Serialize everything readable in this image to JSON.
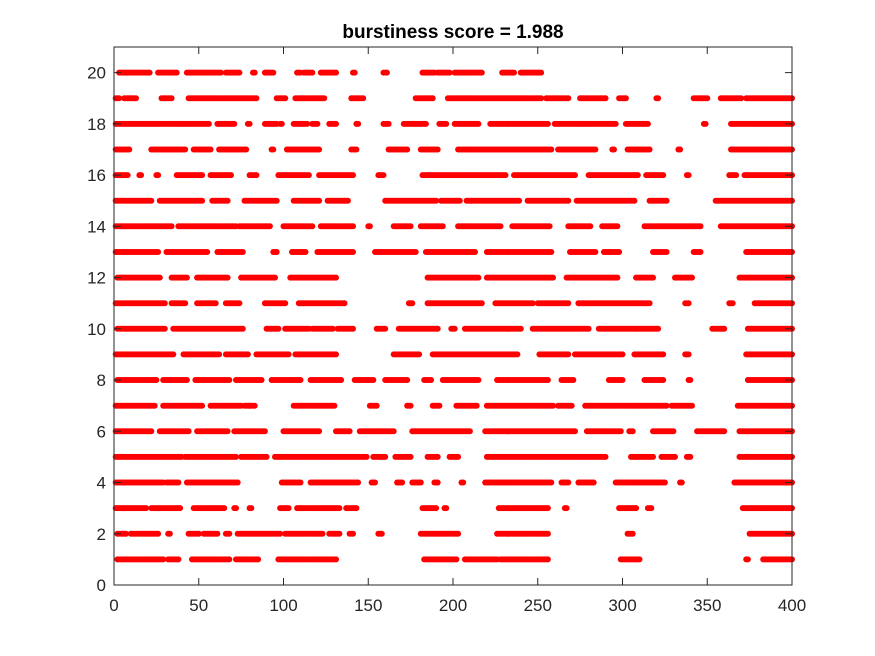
{
  "chart_data": {
    "type": "scatter",
    "title": "burstiness score = 1.988",
    "xlabel": "",
    "ylabel": "",
    "xlim": [
      0,
      400
    ],
    "ylim": [
      0,
      21
    ],
    "xticks": [
      0,
      50,
      100,
      150,
      200,
      250,
      300,
      350,
      400
    ],
    "yticks": [
      0,
      2,
      4,
      6,
      8,
      10,
      12,
      14,
      16,
      18,
      20
    ],
    "grid": false,
    "marker_color": "#ff0000",
    "axis_color": "#262626",
    "rows": [
      {
        "y": 1,
        "segments": [
          [
            2,
            29
          ],
          [
            32,
            38
          ],
          [
            46,
            68
          ],
          [
            72,
            85
          ],
          [
            97,
            131
          ],
          [
            183,
            202
          ],
          [
            207,
            226
          ],
          [
            228,
            256
          ],
          [
            299,
            310
          ],
          [
            373,
            374
          ],
          [
            383,
            400
          ]
        ]
      },
      {
        "y": 2,
        "segments": [
          [
            2,
            7
          ],
          [
            10,
            26
          ],
          [
            32,
            33
          ],
          [
            44,
            50
          ],
          [
            53,
            61
          ],
          [
            66,
            68
          ],
          [
            73,
            98
          ],
          [
            101,
            123
          ],
          [
            127,
            133
          ],
          [
            139,
            141
          ],
          [
            156,
            158
          ],
          [
            181,
            203
          ],
          [
            226,
            256
          ],
          [
            303,
            306
          ],
          [
            375,
            400
          ]
        ]
      },
      {
        "y": 3,
        "segments": [
          [
            1,
            19
          ],
          [
            22,
            39
          ],
          [
            47,
            65
          ],
          [
            71,
            72
          ],
          [
            80,
            81
          ],
          [
            98,
            103
          ],
          [
            108,
            133
          ],
          [
            137,
            143
          ],
          [
            182,
            190
          ],
          [
            195,
            196
          ],
          [
            227,
            256
          ],
          [
            266,
            267
          ],
          [
            298,
            308
          ],
          [
            315,
            317
          ],
          [
            371,
            400
          ]
        ]
      },
      {
        "y": 4,
        "segments": [
          [
            1,
            29
          ],
          [
            31,
            38
          ],
          [
            43,
            73
          ],
          [
            99,
            110
          ],
          [
            116,
            144
          ],
          [
            152,
            154
          ],
          [
            167,
            170
          ],
          [
            176,
            181
          ],
          [
            189,
            191
          ],
          [
            205,
            206
          ],
          [
            219,
            258
          ],
          [
            264,
            268
          ],
          [
            274,
            283
          ],
          [
            296,
            325
          ],
          [
            334,
            335
          ],
          [
            366,
            400
          ]
        ]
      },
      {
        "y": 5,
        "segments": [
          [
            1,
            40
          ],
          [
            42,
            72
          ],
          [
            75,
            90
          ],
          [
            95,
            149
          ],
          [
            153,
            160
          ],
          [
            166,
            175
          ],
          [
            185,
            191
          ],
          [
            198,
            203
          ],
          [
            220,
            290
          ],
          [
            305,
            318
          ],
          [
            323,
            331
          ],
          [
            338,
            340
          ],
          [
            369,
            400
          ]
        ]
      },
      {
        "y": 6,
        "segments": [
          [
            1,
            22
          ],
          [
            27,
            44
          ],
          [
            49,
            67
          ],
          [
            71,
            89
          ],
          [
            100,
            121
          ],
          [
            131,
            139
          ],
          [
            145,
            165
          ],
          [
            176,
            210
          ],
          [
            219,
            272
          ],
          [
            279,
            299
          ],
          [
            304,
            306
          ],
          [
            318,
            330
          ],
          [
            344,
            360
          ],
          [
            369,
            400
          ]
        ]
      },
      {
        "y": 7,
        "segments": [
          [
            1,
            24
          ],
          [
            29,
            52
          ],
          [
            57,
            75
          ],
          [
            77,
            80
          ],
          [
            80,
            83
          ],
          [
            106,
            130
          ],
          [
            151,
            155
          ],
          [
            173,
            175
          ],
          [
            188,
            192
          ],
          [
            202,
            214
          ],
          [
            220,
            259
          ],
          [
            262,
            270
          ],
          [
            278,
            326
          ],
          [
            329,
            341
          ],
          [
            368,
            400
          ]
        ]
      },
      {
        "y": 8,
        "segments": [
          [
            2,
            25
          ],
          [
            29,
            43
          ],
          [
            48,
            68
          ],
          [
            72,
            87
          ],
          [
            93,
            110
          ],
          [
            116,
            134
          ],
          [
            142,
            153
          ],
          [
            160,
            173
          ],
          [
            183,
            187
          ],
          [
            194,
            215
          ],
          [
            226,
            256
          ],
          [
            264,
            271
          ],
          [
            292,
            300
          ],
          [
            313,
            324
          ],
          [
            339,
            340
          ],
          [
            374,
            400
          ]
        ]
      },
      {
        "y": 9,
        "segments": [
          [
            1,
            35
          ],
          [
            41,
            62
          ],
          [
            66,
            79
          ],
          [
            84,
            103
          ],
          [
            107,
            131
          ],
          [
            165,
            180
          ],
          [
            188,
            238
          ],
          [
            251,
            268
          ],
          [
            272,
            300
          ],
          [
            307,
            324
          ],
          [
            337,
            339
          ],
          [
            373,
            400
          ]
        ]
      },
      {
        "y": 10,
        "segments": [
          [
            2,
            30
          ],
          [
            35,
            76
          ],
          [
            90,
            97
          ],
          [
            101,
            115
          ],
          [
            117,
            129
          ],
          [
            132,
            141
          ],
          [
            155,
            160
          ],
          [
            168,
            191
          ],
          [
            199,
            201
          ],
          [
            207,
            240
          ],
          [
            247,
            280
          ],
          [
            286,
            321
          ],
          [
            353,
            360
          ],
          [
            374,
            400
          ]
        ]
      },
      {
        "y": 11,
        "segments": [
          [
            1,
            30
          ],
          [
            34,
            42
          ],
          [
            49,
            60
          ],
          [
            66,
            74
          ],
          [
            89,
            101
          ],
          [
            109,
            136
          ],
          [
            174,
            176
          ],
          [
            185,
            217
          ],
          [
            225,
            247
          ],
          [
            250,
            268
          ],
          [
            274,
            316
          ],
          [
            337,
            339
          ],
          [
            363,
            365
          ],
          [
            378,
            400
          ]
        ]
      },
      {
        "y": 12,
        "segments": [
          [
            2,
            27
          ],
          [
            34,
            43
          ],
          [
            49,
            67
          ],
          [
            75,
            95
          ],
          [
            104,
            131
          ],
          [
            185,
            215
          ],
          [
            220,
            259
          ],
          [
            267,
            297
          ],
          [
            308,
            318
          ],
          [
            331,
            341
          ],
          [
            369,
            400
          ]
        ]
      },
      {
        "y": 13,
        "segments": [
          [
            1,
            26
          ],
          [
            31,
            55
          ],
          [
            61,
            76
          ],
          [
            94,
            96
          ],
          [
            105,
            113
          ],
          [
            120,
            141
          ],
          [
            154,
            178
          ],
          [
            184,
            213
          ],
          [
            220,
            258
          ],
          [
            269,
            284
          ],
          [
            289,
            298
          ],
          [
            318,
            326
          ],
          [
            342,
            346
          ],
          [
            373,
            400
          ]
        ]
      },
      {
        "y": 14,
        "segments": [
          [
            1,
            34
          ],
          [
            38,
            72
          ],
          [
            74,
            92
          ],
          [
            100,
            117
          ],
          [
            122,
            141
          ],
          [
            150,
            151
          ],
          [
            165,
            175
          ],
          [
            181,
            194
          ],
          [
            203,
            228
          ],
          [
            235,
            257
          ],
          [
            268,
            281
          ],
          [
            288,
            297
          ],
          [
            313,
            346
          ],
          [
            358,
            400
          ]
        ]
      },
      {
        "y": 15,
        "segments": [
          [
            1,
            22
          ],
          [
            27,
            52
          ],
          [
            58,
            67
          ],
          [
            77,
            96
          ],
          [
            106,
            121
          ],
          [
            126,
            138
          ],
          [
            160,
            190
          ],
          [
            193,
            204
          ],
          [
            208,
            239
          ],
          [
            244,
            268
          ],
          [
            273,
            307
          ],
          [
            316,
            326
          ],
          [
            355,
            400
          ]
        ]
      },
      {
        "y": 16,
        "segments": [
          [
            1,
            8
          ],
          [
            15,
            16
          ],
          [
            25,
            26
          ],
          [
            37,
            52
          ],
          [
            57,
            69
          ],
          [
            80,
            84
          ],
          [
            97,
            115
          ],
          [
            121,
            141
          ],
          [
            156,
            159
          ],
          [
            182,
            231
          ],
          [
            236,
            272
          ],
          [
            280,
            309
          ],
          [
            314,
            324
          ],
          [
            338,
            339
          ],
          [
            363,
            367
          ],
          [
            372,
            400
          ]
        ]
      },
      {
        "y": 17,
        "segments": [
          [
            1,
            9
          ],
          [
            22,
            42
          ],
          [
            47,
            57
          ],
          [
            62,
            78
          ],
          [
            93,
            94
          ],
          [
            102,
            121
          ],
          [
            140,
            143
          ],
          [
            162,
            173
          ],
          [
            181,
            191
          ],
          [
            203,
            258
          ],
          [
            262,
            284
          ],
          [
            294,
            295
          ],
          [
            303,
            316
          ],
          [
            333,
            334
          ],
          [
            364,
            400
          ]
        ]
      },
      {
        "y": 18,
        "segments": [
          [
            1,
            56
          ],
          [
            61,
            71
          ],
          [
            79,
            80
          ],
          [
            89,
            96
          ],
          [
            98,
            99
          ],
          [
            106,
            114
          ],
          [
            117,
            120
          ],
          [
            127,
            131
          ],
          [
            143,
            144
          ],
          [
            159,
            162
          ],
          [
            171,
            184
          ],
          [
            192,
            196
          ],
          [
            201,
            215
          ],
          [
            222,
            256
          ],
          [
            260,
            296
          ],
          [
            302,
            315
          ],
          [
            348,
            349
          ],
          [
            364,
            400
          ]
        ]
      },
      {
        "y": 19,
        "segments": [
          [
            1,
            3
          ],
          [
            6,
            13
          ],
          [
            28,
            34
          ],
          [
            44,
            84
          ],
          [
            96,
            101
          ],
          [
            107,
            124
          ],
          [
            140,
            147
          ],
          [
            178,
            188
          ],
          [
            197,
            238
          ],
          [
            239,
            252
          ],
          [
            255,
            268
          ],
          [
            275,
            290
          ],
          [
            298,
            302
          ],
          [
            320,
            321
          ],
          [
            342,
            350
          ],
          [
            358,
            370
          ],
          [
            373,
            400
          ]
        ]
      },
      {
        "y": 20,
        "segments": [
          [
            3,
            21
          ],
          [
            26,
            37
          ],
          [
            43,
            63
          ],
          [
            66,
            74
          ],
          [
            82,
            83
          ],
          [
            89,
            94
          ],
          [
            108,
            110
          ],
          [
            112,
            117
          ],
          [
            122,
            131
          ],
          [
            141,
            142
          ],
          [
            159,
            161
          ],
          [
            182,
            189
          ],
          [
            191,
            198
          ],
          [
            201,
            217
          ],
          [
            229,
            236
          ],
          [
            240,
            252
          ]
        ]
      }
    ]
  }
}
